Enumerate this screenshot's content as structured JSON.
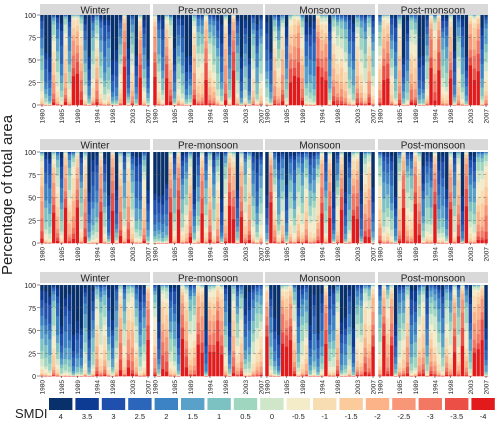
{
  "chart_data": {
    "type": "bar",
    "subtype": "stacked-percent-bar-grid",
    "ylabel": "Percentage of total area",
    "ylim": [
      0,
      100
    ],
    "y_ticks": [
      0,
      25,
      50,
      75,
      100
    ],
    "years": [
      1980,
      1981,
      1982,
      1983,
      1984,
      1985,
      1986,
      1987,
      1988,
      1989,
      1990,
      1991,
      1992,
      1993,
      1994,
      1995,
      1996,
      1997,
      1998,
      1999,
      2000,
      2001,
      2002,
      2003,
      2004,
      2005,
      2006,
      2007
    ],
    "x_tick_labels": [
      "1980",
      "1985",
      "1989",
      "1994",
      "1998",
      "2003",
      "2007"
    ],
    "x_tick_years": [
      1980,
      1985,
      1989,
      1994,
      1998,
      2003,
      2007
    ],
    "panel_titles": [
      "Winter",
      "Pre-monsoon",
      "Monsoon",
      "Post-monsoon"
    ],
    "n_rows": 3,
    "grid": "dashed horizontal at 25, 50, 75",
    "legend": {
      "title": "SMDI",
      "position": "bottom",
      "labels": [
        "4",
        "3.5",
        "3",
        "2.5",
        "2",
        "1.5",
        "1",
        "0.5",
        "0",
        "-0.5",
        "-1",
        "-1.5",
        "-2",
        "-2.5",
        "-3",
        "-3.5",
        "-4"
      ],
      "colors": [
        "#08306b",
        "#0d3b94",
        "#1f50ad",
        "#2c66bb",
        "#3b83c4",
        "#5aa1c9",
        "#7cc2c3",
        "#9fd6c0",
        "#cfe6c8",
        "#f4ecc9",
        "#f9ddb2",
        "#fbcb9b",
        "#fbb387",
        "#f89777",
        "#f37864",
        "#ec4f45",
        "#e31a1c"
      ]
    },
    "summary": "Each panel shows, for every year 1980-2007, the percentage of total area falling in each SMDI class (wet classes stacked at top, dry classes at bottom). Values are approximate readings of the colour proportions."
  }
}
